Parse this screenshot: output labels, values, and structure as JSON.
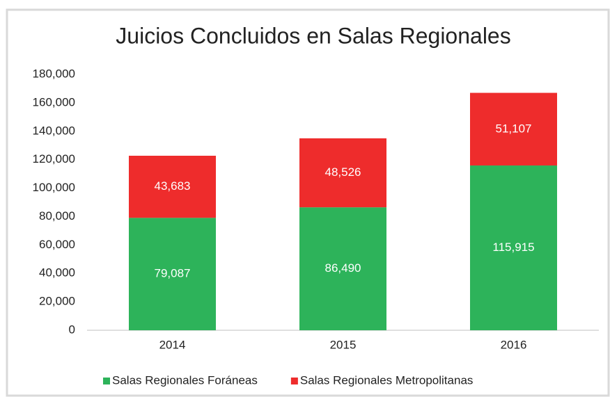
{
  "chart_data": {
    "type": "stacked_bar",
    "title": "Juicios Concluidos en Salas Regionales",
    "categories": [
      "2014",
      "2015",
      "2016"
    ],
    "series": [
      {
        "name": "Salas Regionales Foráneas",
        "color": "#2db35a",
        "values": [
          79087,
          86490,
          115915
        ],
        "value_labels": [
          "79,087",
          "86,490",
          "115,915"
        ]
      },
      {
        "name": "Salas Regionales Metropolitanas",
        "color": "#ee2c2c",
        "values": [
          43683,
          48526,
          51107
        ],
        "value_labels": [
          "43,683",
          "48,526",
          "51,107"
        ]
      }
    ],
    "ylim": [
      0,
      180000
    ],
    "yticks": [
      0,
      {
        "value": 20000,
        "label": "20,000"
      },
      {
        "value": 40000,
        "label": "40,000"
      },
      {
        "value": 60000,
        "label": "60,000"
      },
      {
        "value": 80000,
        "label": "80,000"
      },
      {
        "value": 100000,
        "label": "100,000"
      },
      {
        "value": 120000,
        "label": "120,000"
      },
      {
        "value": 140000,
        "label": "140,000"
      },
      {
        "value": 160000,
        "label": "160,000"
      },
      {
        "value": 180000,
        "label": "180,000"
      }
    ],
    "grid": false,
    "legend": "bottom"
  }
}
